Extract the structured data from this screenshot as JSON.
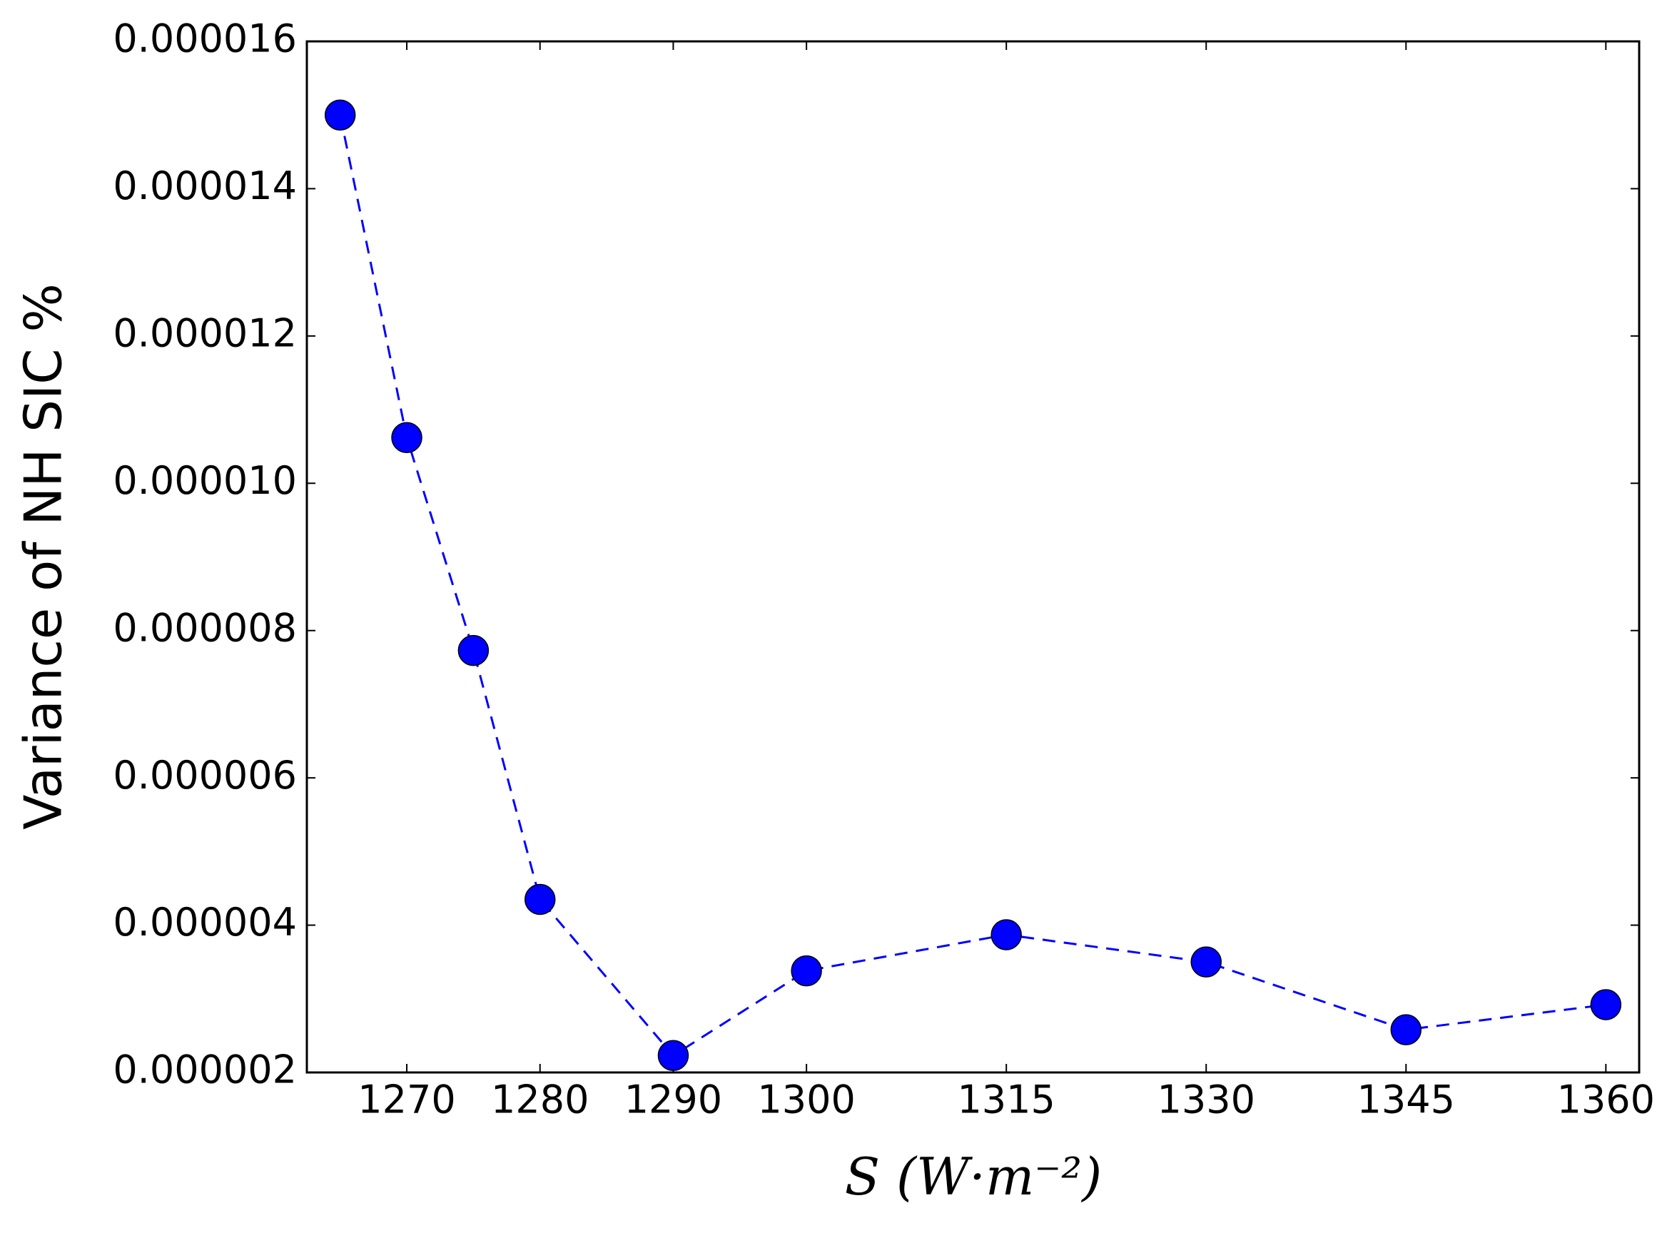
{
  "chart_data": {
    "type": "line",
    "x_label": "S (W·m⁻²)",
    "y_label": "Variance of NH SIC %",
    "x": [
      1265,
      1270,
      1275,
      1280,
      1290,
      1300,
      1315,
      1330,
      1345,
      1360
    ],
    "series": [
      {
        "color": "#0000ff",
        "line_style": "dashed",
        "marker": "circle",
        "values": [
          1.5e-05,
          1.062e-05,
          7.73e-06,
          4.35e-06,
          2.23e-06,
          3.38e-06,
          3.87e-06,
          3.5e-06,
          2.58e-06,
          2.92e-06
        ]
      }
    ],
    "xlim": [
      1262.5,
      1362.5
    ],
    "xticks": [
      1270,
      1280,
      1290,
      1300,
      1315,
      1330,
      1345,
      1360
    ],
    "ylim": [
      2e-06,
      1.6e-05
    ],
    "yticks": [
      {
        "value": 2e-06,
        "label": "0.000002"
      },
      {
        "value": 4e-06,
        "label": "0.000004"
      },
      {
        "value": 6e-06,
        "label": "0.000006"
      },
      {
        "value": 8e-06,
        "label": "0.000008"
      },
      {
        "value": 1e-05,
        "label": "0.000010"
      },
      {
        "value": 1.2e-05,
        "label": "0.000012"
      },
      {
        "value": 1.4e-05,
        "label": "0.000014"
      },
      {
        "value": 1.6e-05,
        "label": "0.000016"
      }
    ],
    "grid": false
  }
}
